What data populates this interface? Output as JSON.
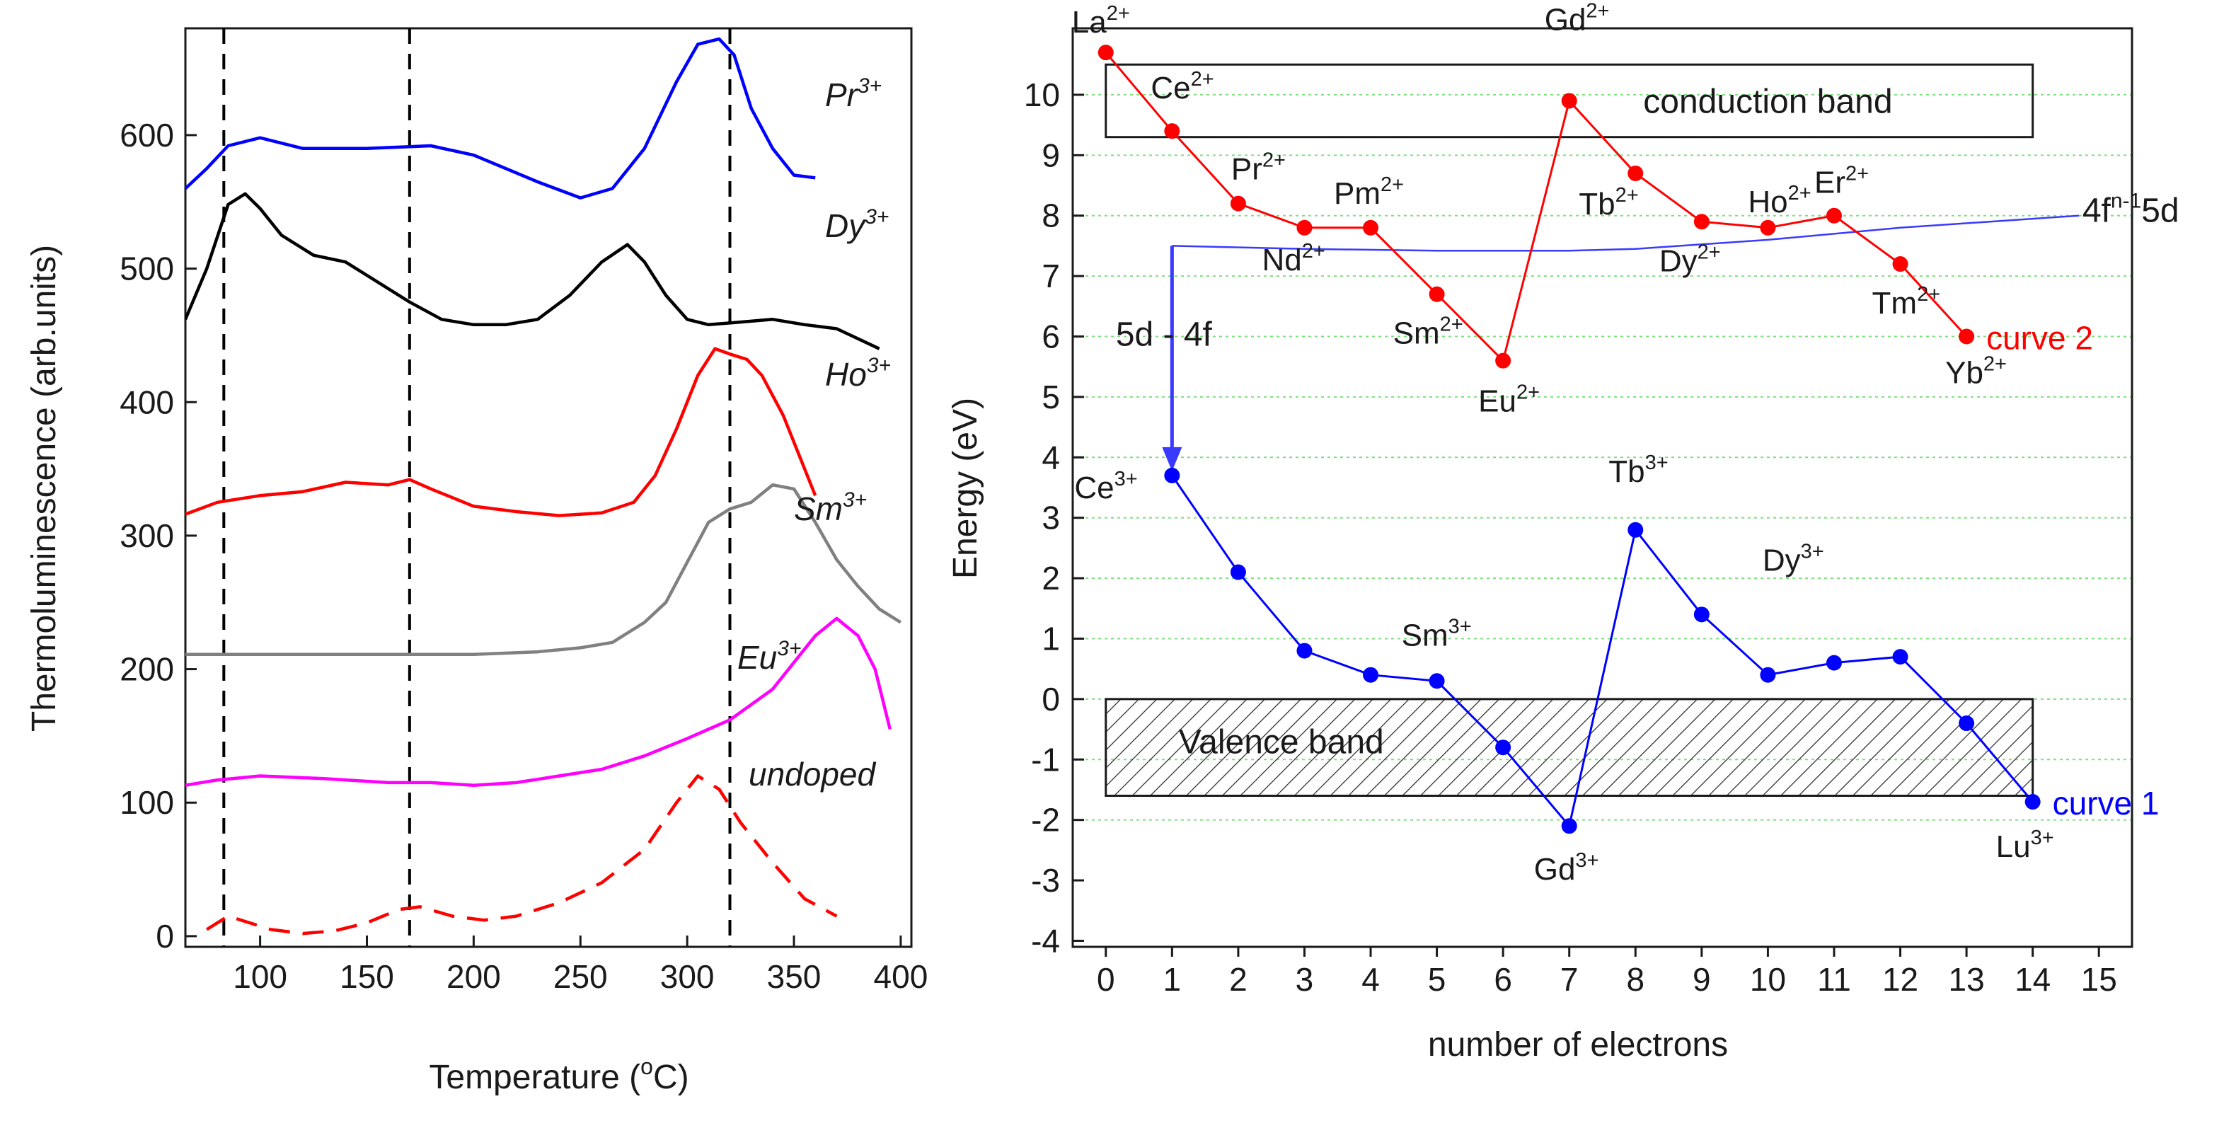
{
  "chart_data": [
    {
      "type": "line",
      "panel": "left",
      "title": "",
      "xlabel": "Temperature (°C)",
      "xlabel_main": "Temperature (",
      "xlabel_sup": "o",
      "xlabel_end": "C)",
      "ylabel": "Thermoluminescence (arb.units)",
      "xlim": [
        65,
        405
      ],
      "ylim": [
        -8,
        680
      ],
      "xticks": [
        100,
        150,
        200,
        250,
        300,
        350,
        400
      ],
      "yticks": [
        0,
        100,
        200,
        300,
        400,
        500,
        600
      ],
      "dashed_verticals": [
        83,
        170,
        320
      ],
      "series": [
        {
          "name": "Pr3+",
          "label": "Pr",
          "sup": "3+",
          "color": "#0000ff",
          "dashed": false,
          "x": [
            65,
            75,
            85,
            100,
            120,
            150,
            180,
            200,
            230,
            250,
            265,
            280,
            295,
            305,
            315,
            322,
            330,
            340,
            350,
            360
          ],
          "y": [
            560,
            575,
            592,
            598,
            590,
            590,
            592,
            585,
            565,
            553,
            560,
            590,
            640,
            668,
            672,
            660,
            620,
            590,
            570,
            568
          ]
        },
        {
          "name": "Dy3+",
          "label": "Dy",
          "sup": "3+",
          "color": "#000000",
          "dashed": false,
          "x": [
            65,
            75,
            85,
            93,
            100,
            110,
            125,
            140,
            155,
            170,
            185,
            200,
            215,
            230,
            245,
            260,
            272,
            280,
            290,
            300,
            310,
            325,
            340,
            355,
            370,
            390
          ],
          "y": [
            462,
            500,
            548,
            556,
            545,
            525,
            510,
            505,
            490,
            475,
            462,
            458,
            458,
            462,
            480,
            505,
            518,
            505,
            480,
            462,
            458,
            460,
            462,
            458,
            455,
            440
          ]
        },
        {
          "name": "Ho3+",
          "label": "Ho",
          "sup": "3+",
          "color": "#ff0000",
          "dashed": false,
          "x": [
            65,
            80,
            100,
            120,
            140,
            160,
            170,
            180,
            200,
            220,
            240,
            260,
            275,
            285,
            295,
            305,
            313,
            320,
            328,
            335,
            345,
            355,
            360
          ],
          "y": [
            316,
            325,
            330,
            333,
            340,
            338,
            342,
            335,
            322,
            318,
            315,
            317,
            325,
            345,
            380,
            420,
            440,
            436,
            432,
            420,
            390,
            350,
            330
          ]
        },
        {
          "name": "Sm3+",
          "label": "Sm",
          "sup": "3+",
          "color": "#808080",
          "dashed": false,
          "x": [
            65,
            100,
            150,
            200,
            230,
            250,
            265,
            280,
            290,
            300,
            310,
            320,
            330,
            340,
            350,
            360,
            370,
            380,
            390,
            400
          ],
          "y": [
            211,
            211,
            211,
            211,
            213,
            216,
            220,
            235,
            250,
            280,
            310,
            320,
            325,
            338,
            335,
            310,
            282,
            262,
            245,
            235
          ]
        },
        {
          "name": "Eu3+",
          "label": "Eu",
          "sup": "3+",
          "color": "#ff00ff",
          "dashed": false,
          "x": [
            65,
            80,
            100,
            130,
            160,
            180,
            200,
            220,
            240,
            260,
            280,
            300,
            320,
            340,
            350,
            360,
            370,
            380,
            388,
            395
          ],
          "y": [
            113,
            117,
            120,
            118,
            115,
            115,
            113,
            115,
            120,
            125,
            135,
            148,
            162,
            185,
            205,
            225,
            238,
            225,
            200,
            155
          ]
        },
        {
          "name": "undoped",
          "label": "undoped",
          "sup": "",
          "color": "#ff0000",
          "dashed": true,
          "x": [
            75,
            85,
            95,
            105,
            120,
            135,
            150,
            165,
            175,
            190,
            205,
            220,
            240,
            260,
            280,
            295,
            305,
            315,
            325,
            340,
            355,
            370
          ],
          "y": [
            5,
            15,
            10,
            5,
            2,
            4,
            10,
            20,
            22,
            15,
            12,
            15,
            25,
            40,
            65,
            100,
            120,
            110,
            85,
            55,
            28,
            15
          ]
        }
      ]
    },
    {
      "type": "scatter",
      "panel": "right",
      "title": "",
      "xlabel": "number of electrons",
      "ylabel": "Energy (eV)",
      "xlim": [
        -0.5,
        15.5
      ],
      "ylim": [
        -4.1,
        11.1
      ],
      "xticks": [
        0,
        1,
        2,
        3,
        4,
        5,
        6,
        7,
        8,
        9,
        10,
        11,
        12,
        13,
        14,
        15
      ],
      "yticks": [
        -4,
        -3,
        -2,
        -1,
        0,
        1,
        2,
        3,
        4,
        5,
        6,
        7,
        8,
        9,
        10
      ],
      "gridlines_y": [
        -2,
        -1,
        0,
        1,
        2,
        3,
        4,
        5,
        6,
        7,
        8,
        9,
        10
      ],
      "conduction_band": {
        "label": "conduction band",
        "x0": 0,
        "x1": 14,
        "y0": 9.3,
        "y1": 10.5
      },
      "valence_band": {
        "label": "Valence band",
        "x0": 0,
        "x1": 14,
        "y0": -1.6,
        "y1": 0
      },
      "curve_4f5d": {
        "label": "4f",
        "label_sup": "n-1",
        "label_end": "5d",
        "color": "#3a3aff",
        "x": [
          1,
          3,
          5,
          7,
          8,
          10,
          12,
          14.7
        ],
        "y": [
          7.5,
          7.45,
          7.42,
          7.42,
          7.45,
          7.6,
          7.8,
          8.0
        ]
      },
      "transition_arrow": {
        "label": "5d - 4f",
        "x": 1,
        "y_from": 7.5,
        "y_to": 3.7,
        "color": "#3a3aff"
      },
      "series": [
        {
          "name": "curve 2",
          "label": "curve 2",
          "color": "#ff0000",
          "x": [
            0,
            1,
            2,
            3,
            4,
            5,
            6,
            7,
            8,
            9,
            10,
            11,
            12,
            13
          ],
          "y": [
            10.7,
            9.4,
            8.2,
            7.8,
            7.8,
            6.7,
            5.6,
            9.9,
            8.7,
            7.9,
            7.8,
            8.0,
            7.2,
            6.0
          ],
          "point_labels": [
            {
              "i": 0,
              "text": "La",
              "sup": "2+"
            },
            {
              "i": 1,
              "text": "Ce",
              "sup": "2+"
            },
            {
              "i": 2,
              "text": "Pr",
              "sup": "2+"
            },
            {
              "i": 3,
              "text": "Nd",
              "sup": "2+"
            },
            {
              "i": 4,
              "text": "Pm",
              "sup": "2+"
            },
            {
              "i": 5,
              "text": "Sm",
              "sup": "2+"
            },
            {
              "i": 6,
              "text": "Eu",
              "sup": "2+"
            },
            {
              "i": 7,
              "text": "Gd",
              "sup": "2+"
            },
            {
              "i": 8,
              "text": "Tb",
              "sup": "2+"
            },
            {
              "i": 9,
              "text": "Dy",
              "sup": "2+"
            },
            {
              "i": 10,
              "text": "Ho",
              "sup": "2+"
            },
            {
              "i": 11,
              "text": "Er",
              "sup": "2+"
            },
            {
              "i": 12,
              "text": "Tm",
              "sup": "2+"
            },
            {
              "i": 13,
              "text": "Yb",
              "sup": "2+"
            }
          ]
        },
        {
          "name": "curve 1",
          "label": "curve 1",
          "color": "#0000ff",
          "x": [
            1,
            2,
            3,
            4,
            5,
            6,
            7,
            8,
            9,
            10,
            11,
            12,
            13,
            14
          ],
          "y": [
            3.7,
            2.1,
            0.8,
            0.4,
            0.3,
            -0.8,
            -2.1,
            2.8,
            1.4,
            0.4,
            0.6,
            0.7,
            -0.4,
            -1.7
          ],
          "point_labels": [
            {
              "i": 0,
              "text": "Ce",
              "sup": "3+"
            },
            {
              "i": 4,
              "text": "Sm",
              "sup": "3+"
            },
            {
              "i": 6,
              "text": "Gd",
              "sup": "3+"
            },
            {
              "i": 7,
              "text": "Tb",
              "sup": "3+"
            },
            {
              "i": 8,
              "text": "Dy",
              "sup": "3+"
            },
            {
              "i": 13,
              "text": "Lu",
              "sup": "3+"
            }
          ]
        }
      ]
    }
  ]
}
